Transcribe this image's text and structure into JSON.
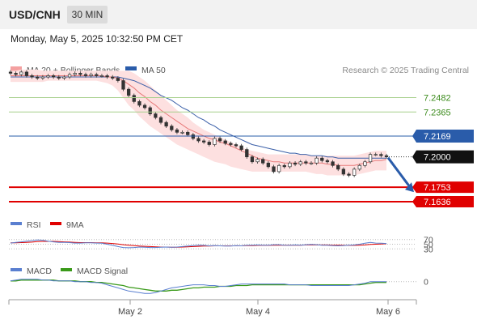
{
  "header": {
    "symbol": "USD/CNH",
    "interval": "30 MIN"
  },
  "datetime": "Monday, May 5, 2025 10:32:50 PM CET",
  "legend": {
    "ma20_bb": "MA 20 + Bollinger Bands",
    "ma50": "MA 50",
    "credit": "Research © 2025 Trading Central"
  },
  "colors": {
    "ma20": "#e87a7a",
    "ma50": "#3a5fa8",
    "band": "#fde0e0",
    "resistance": "#a8d08d",
    "pivot_line": "#2a5caa",
    "support": "#e00000",
    "rsi": "#5a7fd0",
    "rsi_ma": "#e00000",
    "macd": "#5a7fd0",
    "macd_signal": "#3a9a1a",
    "arrow": "#2a5caa"
  },
  "chart_data": [
    {
      "type": "line",
      "name": "price",
      "x_ticks": [
        "May 2",
        "May 4",
        "May 6"
      ],
      "ylim": [
        7.155,
        7.265
      ],
      "current_price": 7.2,
      "levels": {
        "resistance": [
          7.2482,
          7.2365
        ],
        "pivot": 7.2169,
        "support": [
          7.1753,
          7.1636
        ]
      },
      "level_labels": {
        "r1": "7.2482",
        "r2": "7.2365",
        "pivot": "7.2169",
        "price": "7.2000",
        "s1": "7.1753",
        "s2": "7.1636"
      },
      "close": [
        7.268,
        7.267,
        7.269,
        7.266,
        7.265,
        7.264,
        7.265,
        7.266,
        7.265,
        7.264,
        7.265,
        7.267,
        7.268,
        7.267,
        7.266,
        7.267,
        7.266,
        7.266,
        7.265,
        7.264,
        7.262,
        7.255,
        7.25,
        7.245,
        7.242,
        7.24,
        7.235,
        7.232,
        7.228,
        7.225,
        7.222,
        7.22,
        7.22,
        7.218,
        7.215,
        7.213,
        7.212,
        7.21,
        7.215,
        7.213,
        7.211,
        7.21,
        7.209,
        7.206,
        7.2,
        7.196,
        7.198,
        7.195,
        7.192,
        7.188,
        7.193,
        7.192,
        7.195,
        7.194,
        7.196,
        7.195,
        7.195,
        7.199,
        7.197,
        7.196,
        7.193,
        7.19,
        7.186,
        7.185,
        7.19,
        7.193,
        7.196,
        7.202,
        7.202,
        7.201,
        7.2
      ],
      "ma20": [
        7.266,
        7.266,
        7.266,
        7.266,
        7.266,
        7.266,
        7.266,
        7.266,
        7.266,
        7.266,
        7.266,
        7.266,
        7.266,
        7.266,
        7.266,
        7.266,
        7.266,
        7.266,
        7.265,
        7.265,
        7.264,
        7.262,
        7.259,
        7.256,
        7.252,
        7.249,
        7.245,
        7.242,
        7.238,
        7.235,
        7.232,
        7.229,
        7.226,
        7.223,
        7.221,
        7.219,
        7.217,
        7.215,
        7.214,
        7.212,
        7.211,
        7.209,
        7.207,
        7.205,
        7.203,
        7.201,
        7.199,
        7.198,
        7.197,
        7.196,
        7.196,
        7.195,
        7.195,
        7.195,
        7.195,
        7.195,
        7.195,
        7.195,
        7.195,
        7.194,
        7.194,
        7.193,
        7.193,
        7.193,
        7.193,
        7.194,
        7.195,
        7.196,
        7.197,
        7.197,
        7.198
      ],
      "ma50": [
        7.265,
        7.265,
        7.265,
        7.265,
        7.265,
        7.265,
        7.265,
        7.265,
        7.265,
        7.265,
        7.265,
        7.265,
        7.265,
        7.265,
        7.265,
        7.265,
        7.265,
        7.265,
        7.265,
        7.265,
        7.265,
        7.264,
        7.263,
        7.262,
        7.26,
        7.258,
        7.256,
        7.253,
        7.25,
        7.248,
        7.246,
        7.243,
        7.24,
        7.238,
        7.235,
        7.232,
        7.23,
        7.227,
        7.225,
        7.222,
        7.22,
        7.218,
        7.216,
        7.214,
        7.212,
        7.21,
        7.209,
        7.208,
        7.207,
        7.206,
        7.205,
        7.204,
        7.203,
        7.203,
        7.202,
        7.202,
        7.201,
        7.201,
        7.201,
        7.2,
        7.2,
        7.199,
        7.199,
        7.199,
        7.199,
        7.199,
        7.199,
        7.199,
        7.199,
        7.199,
        7.199
      ],
      "bb_upper": [
        7.27,
        7.27,
        7.271,
        7.271,
        7.271,
        7.271,
        7.27,
        7.27,
        7.27,
        7.27,
        7.27,
        7.27,
        7.27,
        7.27,
        7.27,
        7.27,
        7.27,
        7.27,
        7.27,
        7.27,
        7.27,
        7.27,
        7.27,
        7.268,
        7.265,
        7.262,
        7.258,
        7.254,
        7.25,
        7.246,
        7.242,
        7.238,
        7.235,
        7.232,
        7.228,
        7.225,
        7.222,
        7.22,
        7.218,
        7.216,
        7.214,
        7.212,
        7.21,
        7.208,
        7.206,
        7.205,
        7.204,
        7.203,
        7.202,
        7.202,
        7.202,
        7.202,
        7.202,
        7.202,
        7.202,
        7.202,
        7.201,
        7.201,
        7.201,
        7.201,
        7.201,
        7.201,
        7.201,
        7.201,
        7.201,
        7.202,
        7.203,
        7.204,
        7.205,
        7.205,
        7.205
      ],
      "bb_lower": [
        7.261,
        7.261,
        7.261,
        7.261,
        7.261,
        7.261,
        7.261,
        7.262,
        7.262,
        7.262,
        7.262,
        7.262,
        7.262,
        7.262,
        7.262,
        7.262,
        7.262,
        7.261,
        7.26,
        7.258,
        7.254,
        7.248,
        7.242,
        7.238,
        7.233,
        7.229,
        7.225,
        7.222,
        7.219,
        7.216,
        7.213,
        7.21,
        7.208,
        7.206,
        7.204,
        7.202,
        7.2,
        7.198,
        7.196,
        7.195,
        7.194,
        7.192,
        7.191,
        7.19,
        7.189,
        7.188,
        7.188,
        7.188,
        7.188,
        7.188,
        7.188,
        7.188,
        7.188,
        7.188,
        7.188,
        7.188,
        7.187,
        7.186,
        7.186,
        7.185,
        7.185,
        7.185,
        7.185,
        7.185,
        7.185,
        7.186,
        7.187,
        7.188,
        7.189,
        7.189,
        7.189
      ]
    },
    {
      "type": "line",
      "name": "rsi",
      "legend": [
        "RSI",
        "9MA"
      ],
      "levels": [
        70,
        50,
        30
      ],
      "level_labels": [
        "70",
        "50",
        "30"
      ],
      "ylim": [
        0,
        100
      ],
      "rsi": [
        55,
        58,
        60,
        63,
        65,
        68,
        67,
        63,
        60,
        58,
        58,
        57,
        55,
        55,
        56,
        56,
        55,
        54,
        50,
        45,
        40,
        36,
        35,
        36,
        38,
        37,
        36,
        36,
        37,
        38,
        37,
        38,
        40,
        42,
        44,
        46,
        45,
        43,
        44,
        43,
        42,
        42,
        44,
        43,
        45,
        46,
        47,
        46,
        46,
        48,
        48,
        46,
        45,
        47,
        46,
        48,
        49,
        48,
        46,
        46,
        44,
        43,
        44,
        46,
        47,
        50,
        54,
        58,
        55,
        54,
        53
      ],
      "ma": [
        56,
        56,
        57,
        58,
        59,
        61,
        62,
        62,
        62,
        61,
        60,
        59,
        58,
        57,
        57,
        57,
        56,
        56,
        55,
        53,
        51,
        48,
        46,
        44,
        42,
        41,
        40,
        39,
        38,
        38,
        37,
        37,
        38,
        39,
        40,
        41,
        42,
        42,
        43,
        43,
        43,
        43,
        43,
        43,
        44,
        44,
        45,
        45,
        45,
        46,
        46,
        46,
        46,
        46,
        46,
        47,
        47,
        47,
        47,
        47,
        46,
        46,
        45,
        45,
        45,
        46,
        47,
        49,
        50,
        51,
        52
      ]
    },
    {
      "type": "line",
      "name": "macd",
      "legend": [
        "MACD",
        "MACD Signal"
      ],
      "zero_label": "0",
      "ylim": [
        -0.02,
        0.008
      ],
      "macd": [
        0.001,
        0.002,
        0.003,
        0.003,
        0.003,
        0.003,
        0.002,
        0.002,
        0.001,
        0.001,
        0.001,
        0.001,
        0.0,
        0.0,
        0.0,
        -0.001,
        -0.001,
        -0.002,
        -0.004,
        -0.006,
        -0.008,
        -0.01,
        -0.012,
        -0.013,
        -0.014,
        -0.015,
        -0.015,
        -0.014,
        -0.012,
        -0.01,
        -0.008,
        -0.007,
        -0.006,
        -0.005,
        -0.004,
        -0.004,
        -0.004,
        -0.005,
        -0.005,
        -0.006,
        -0.006,
        -0.005,
        -0.004,
        -0.003,
        -0.003,
        -0.003,
        -0.003,
        -0.003,
        -0.003,
        -0.003,
        -0.003,
        -0.003,
        -0.004,
        -0.004,
        -0.004,
        -0.004,
        -0.005,
        -0.005,
        -0.005,
        -0.005,
        -0.005,
        -0.005,
        -0.005,
        -0.005,
        -0.004,
        -0.003,
        -0.002,
        0.0,
        0.0,
        0.0,
        0.0
      ],
      "signal": [
        0.001,
        0.001,
        0.002,
        0.002,
        0.002,
        0.002,
        0.002,
        0.002,
        0.002,
        0.001,
        0.001,
        0.001,
        0.001,
        0.0,
        0.0,
        0.0,
        -0.001,
        -0.001,
        -0.002,
        -0.003,
        -0.004,
        -0.005,
        -0.007,
        -0.008,
        -0.009,
        -0.01,
        -0.011,
        -0.012,
        -0.012,
        -0.012,
        -0.011,
        -0.011,
        -0.01,
        -0.009,
        -0.008,
        -0.008,
        -0.007,
        -0.007,
        -0.007,
        -0.006,
        -0.006,
        -0.006,
        -0.005,
        -0.005,
        -0.005,
        -0.004,
        -0.004,
        -0.004,
        -0.004,
        -0.004,
        -0.004,
        -0.004,
        -0.004,
        -0.004,
        -0.004,
        -0.004,
        -0.004,
        -0.004,
        -0.004,
        -0.004,
        -0.004,
        -0.004,
        -0.004,
        -0.004,
        -0.004,
        -0.004,
        -0.003,
        -0.002,
        -0.001,
        -0.001,
        -0.001
      ]
    }
  ]
}
